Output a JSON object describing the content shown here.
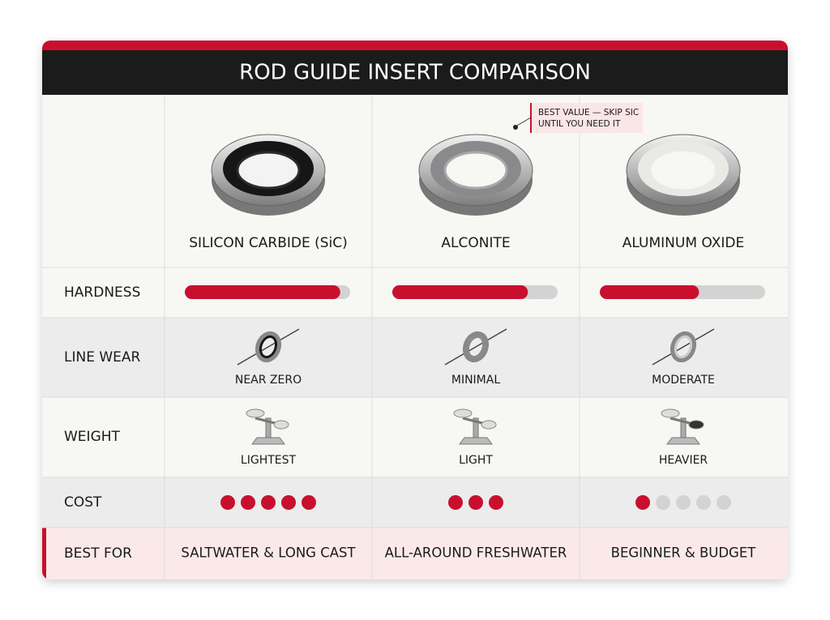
{
  "title": "ROD GUIDE INSERT COMPARISON",
  "annotation": {
    "lines": [
      "BEST VALUE — SKIP SIC",
      "UNTIL YOU NEED IT"
    ]
  },
  "row_labels": [
    "HARDNESS",
    "LINE WEAR",
    "WEIGHT",
    "COST",
    "BEST FOR"
  ],
  "columns": [
    {
      "name": "SILICON CARBIDE (SiC)",
      "hardness": 0.94,
      "line_wear": "NEAR ZERO",
      "weight": "LIGHTEST",
      "cost": {
        "filled": 5,
        "total": 5
      },
      "best_for": "SALTWATER & LONG CAST"
    },
    {
      "name": "ALCONITE",
      "hardness": 0.82,
      "line_wear": "MINIMAL",
      "weight": "LIGHT",
      "cost": {
        "filled": 3,
        "total": 3
      },
      "best_for": "ALL-AROUND FRESHWATER"
    },
    {
      "name": "ALUMINUM OXIDE",
      "hardness": 0.6,
      "line_wear": "MODERATE",
      "weight": "HEAVIER",
      "cost": {
        "filled": 1,
        "total": 5
      },
      "best_for": "BEGINNER & BUDGET"
    }
  ]
}
